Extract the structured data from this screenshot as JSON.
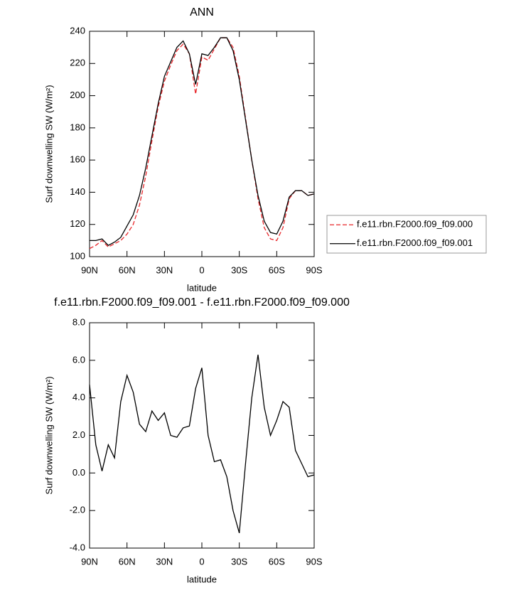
{
  "chart_data": [
    {
      "type": "line",
      "title": "ANN",
      "xlabel": "latitude",
      "ylabel": "Surf downwelling SW (W/m²)",
      "x": [
        90,
        85,
        80,
        75,
        70,
        65,
        60,
        55,
        50,
        45,
        40,
        35,
        30,
        25,
        20,
        15,
        10,
        5,
        0,
        -5,
        -10,
        -15,
        -20,
        -25,
        -30,
        -35,
        -40,
        -45,
        -50,
        -55,
        -60,
        -65,
        -70,
        -75,
        -80,
        -85,
        -90
      ],
      "xlim": [
        90,
        -90
      ],
      "xticks": [
        {
          "value": 90,
          "label": "90N"
        },
        {
          "value": 60,
          "label": "60N"
        },
        {
          "value": 30,
          "label": "30N"
        },
        0,
        {
          "value": -30,
          "label": "30S"
        },
        {
          "value": -60,
          "label": "60S"
        },
        {
          "value": -90,
          "label": "90S"
        }
      ],
      "ylim": [
        100,
        240
      ],
      "yticks": [
        100,
        120,
        140,
        160,
        180,
        200,
        220,
        240
      ],
      "legend": "outside-right",
      "series": [
        {
          "name": "f.e11.rbn.F2000.f09_f09.000",
          "color": "#e8262a",
          "dashed": true,
          "values": [
            105,
            107,
            110,
            106,
            108,
            110,
            114,
            120,
            132,
            150,
            172,
            193,
            209,
            219,
            228,
            232,
            226,
            201,
            224,
            222,
            229,
            236,
            236,
            230,
            212,
            186,
            160,
            136,
            118,
            111,
            110,
            118,
            136,
            141,
            141,
            138,
            139
          ]
        },
        {
          "name": "f.e11.rbn.F2000.f09_f09.001",
          "color": "#000000",
          "dashed": false,
          "values": [
            110,
            110,
            111,
            107,
            109,
            112,
            119,
            126,
            138,
            155,
            175,
            195,
            212,
            221,
            230,
            234,
            226,
            207,
            226,
            225,
            230,
            236,
            236,
            228,
            210,
            185,
            160,
            138,
            122,
            115,
            114,
            122,
            137,
            141,
            141,
            138,
            139
          ]
        }
      ]
    },
    {
      "type": "line",
      "title": "f.e11.rbn.F2000.f09_f09.001 - f.e11.rbn.F2000.f09_f09.000",
      "xlabel": "latitude",
      "ylabel": "Surf downwelling SW (W/m²)",
      "x": [
        90,
        85,
        80,
        75,
        70,
        65,
        60,
        55,
        50,
        45,
        40,
        35,
        30,
        25,
        20,
        15,
        10,
        5,
        0,
        -5,
        -10,
        -15,
        -20,
        -25,
        -30,
        -35,
        -40,
        -45,
        -50,
        -55,
        -60,
        -65,
        -70,
        -75,
        -80,
        -85,
        -90
      ],
      "xlim": [
        90,
        -90
      ],
      "xticks": [
        {
          "value": 90,
          "label": "90N"
        },
        {
          "value": 60,
          "label": "60N"
        },
        {
          "value": 30,
          "label": "30N"
        },
        0,
        {
          "value": -30,
          "label": "30S"
        },
        {
          "value": -60,
          "label": "60S"
        },
        {
          "value": -90,
          "label": "90S"
        }
      ],
      "ylim": [
        -4,
        8
      ],
      "yticks": [
        {
          "value": -4,
          "label": "-4.0"
        },
        {
          "value": -2,
          "label": "-2.0"
        },
        {
          "value": 0,
          "label": "0.0"
        },
        {
          "value": 2,
          "label": "2.0"
        },
        {
          "value": 4,
          "label": "4.0"
        },
        {
          "value": 6,
          "label": "6.0"
        },
        {
          "value": 8,
          "label": "8.0"
        }
      ],
      "series": [
        {
          "color": "#000000",
          "dashed": false,
          "values": [
            4.7,
            1.5,
            0.1,
            1.5,
            0.8,
            3.8,
            5.2,
            4.3,
            2.6,
            2.2,
            3.3,
            2.8,
            3.2,
            2.0,
            1.9,
            2.4,
            2.5,
            4.5,
            5.6,
            2.0,
            0.6,
            0.7,
            -0.2,
            -2.0,
            -3.2,
            0.5,
            4.0,
            6.3,
            3.5,
            2.0,
            2.8,
            3.8,
            3.5,
            1.2,
            0.5,
            -0.2,
            -0.1
          ]
        }
      ]
    }
  ]
}
